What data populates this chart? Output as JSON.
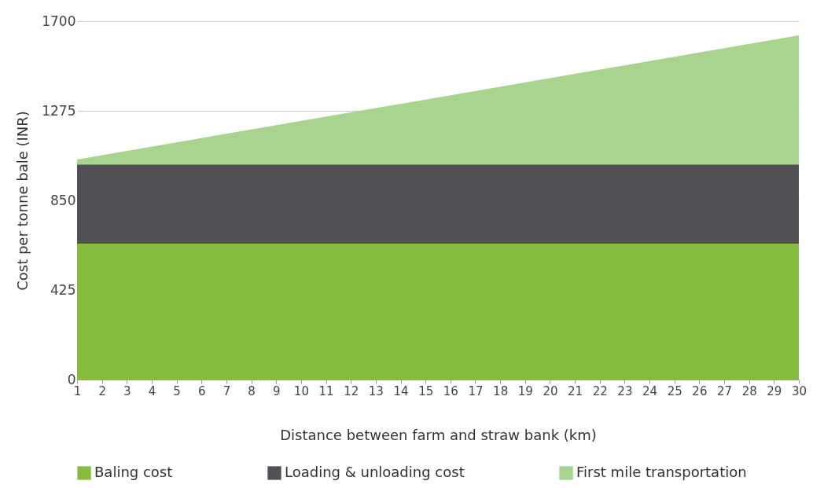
{
  "chart_data": {
    "type": "area",
    "stacked": true,
    "xlabel": "Distance between farm and straw bank (km)",
    "ylabel": "Cost per tonne bale (INR)",
    "x": [
      1,
      30
    ],
    "series": [
      {
        "name": "Baling cost",
        "color": "#86bc40",
        "values": [
          645,
          645
        ]
      },
      {
        "name": "Loading & unloading cost",
        "color": "#4f5154",
        "values": [
          376,
          376
        ]
      },
      {
        "name": "First mile transportation",
        "color": "#a9d48f",
        "values": [
          23,
          612
        ]
      }
    ],
    "xlim": [
      1,
      30
    ],
    "xticks": [
      1,
      2,
      3,
      4,
      5,
      6,
      7,
      8,
      9,
      10,
      11,
      12,
      13,
      14,
      15,
      16,
      17,
      18,
      19,
      20,
      21,
      22,
      23,
      24,
      25,
      26,
      27,
      28,
      29,
      30
    ],
    "ylim": [
      0,
      1700
    ],
    "yticks": [
      0,
      425,
      850,
      1275,
      1700
    ],
    "grid": "y",
    "legend": "bottom"
  }
}
